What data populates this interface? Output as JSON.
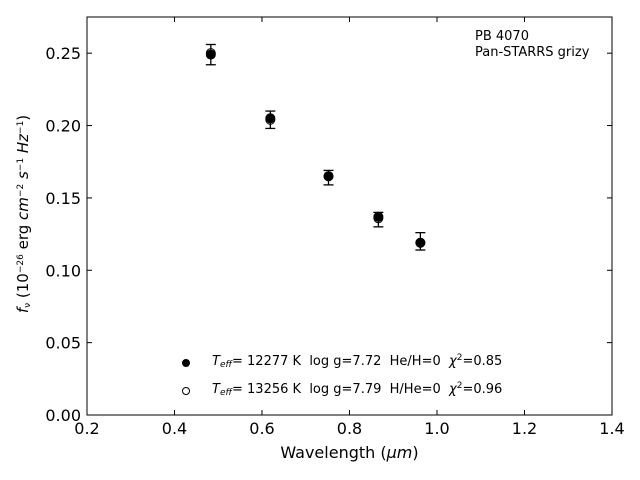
{
  "chart_data": {
    "type": "scatter",
    "xlabel": "Wavelength (μm)",
    "xlabel_prefix": "Wavelength (",
    "xlabel_unit": "μm",
    "xlabel_suffix": ")",
    "ylabel": "f_ν (10^-26 erg cm^-2 s^-1 Hz^-1)",
    "xlim": [
      0.2,
      1.4
    ],
    "ylim": [
      0.0,
      0.275
    ],
    "xticks": [
      "0.2",
      "0.4",
      "0.6",
      "0.8",
      "1.0",
      "1.2",
      "1.4"
    ],
    "yticks": [
      "0.00",
      "0.05",
      "0.10",
      "0.15",
      "0.20",
      "0.25"
    ],
    "annotation": [
      "PB 4070",
      "Pan-STARRS grizy"
    ],
    "legend_position": "lower-center",
    "observed": {
      "x": [
        0.483,
        0.619,
        0.752,
        0.866,
        0.962
      ],
      "y": [
        0.249,
        0.204,
        0.164,
        0.135,
        0.12
      ],
      "yerr": [
        0.007,
        0.006,
        0.005,
        0.005,
        0.006
      ]
    },
    "series": [
      {
        "name": "T_eff= 12277 K log g=7.72 He/H=0 χ²=0.85",
        "marker": "filled",
        "teff": "12277",
        "logg": "7.72",
        "comp_label": "He/H=0",
        "chi2": "0.85",
        "x": [
          0.483,
          0.619,
          0.752,
          0.866,
          0.962
        ],
        "y": [
          0.249,
          0.205,
          0.165,
          0.137,
          0.119
        ]
      },
      {
        "name": "T_eff= 13256 K log g=7.79 H/He=0 χ²=0.96",
        "marker": "open",
        "teff": "13256",
        "logg": "7.79",
        "comp_label": "H/He=0",
        "chi2": "0.96",
        "x": [
          0.483,
          0.619,
          0.752,
          0.866,
          0.962
        ],
        "y": [
          0.25,
          0.204,
          0.165,
          0.136,
          0.119
        ]
      }
    ]
  }
}
